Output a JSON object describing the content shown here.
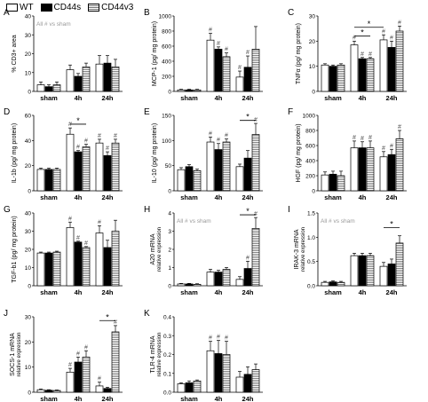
{
  "legend": {
    "wt": "WT",
    "cd44s": "CD44s",
    "cd44v3": "CD44v3"
  },
  "categories": [
    "sham",
    "4h",
    "24h"
  ],
  "colors": {
    "wt": "#ffffff",
    "cd44s": "#000000",
    "cd44v3": "#ffffff",
    "stroke": "#000000",
    "note": "#999999"
  },
  "chart_data": [
    {
      "type": "bar",
      "panel": "A",
      "ylabel": "% CD3+ area",
      "ylim": [
        0,
        40
      ],
      "yticks": [
        0,
        10,
        20,
        30,
        40
      ],
      "note": "All # vs sham",
      "categories": [
        "sham",
        "4h",
        "24h"
      ],
      "series": [
        {
          "name": "WT",
          "values": [
            3.5,
            11.5,
            14.5
          ],
          "errors": [
            1.5,
            2.5,
            4.5
          ]
        },
        {
          "name": "CD44s",
          "values": [
            2.5,
            8.0,
            15.0
          ],
          "errors": [
            1.0,
            1.5,
            4.0
          ]
        },
        {
          "name": "CD44v3",
          "values": [
            3.5,
            13.0,
            13.0
          ],
          "errors": [
            1.5,
            2.0,
            4.0
          ]
        }
      ],
      "annotations": []
    },
    {
      "type": "bar",
      "panel": "B",
      "ylabel": "MCP-1 (pg/ mg protein)",
      "ylim": [
        0,
        1000
      ],
      "yticks": [
        0,
        200,
        400,
        600,
        800,
        1000
      ],
      "note": "",
      "categories": [
        "sham",
        "4h",
        "24h"
      ],
      "series": [
        {
          "name": "WT",
          "values": [
            20,
            680,
            190
          ],
          "errors": [
            8,
            90,
            80
          ]
        },
        {
          "name": "CD44s",
          "values": [
            20,
            560,
            320
          ],
          "errors": [
            8,
            30,
            150
          ]
        },
        {
          "name": "CD44v3",
          "values": [
            20,
            460,
            560
          ],
          "errors": [
            8,
            50,
            300
          ]
        }
      ],
      "annotations": [
        {
          "type": "hash",
          "group": 1,
          "series": 0
        },
        {
          "type": "hash",
          "group": 1,
          "series": 1
        },
        {
          "type": "hash",
          "group": 1,
          "series": 2
        },
        {
          "type": "hash",
          "group": 2,
          "series": 0
        },
        {
          "type": "hash",
          "group": 2,
          "series": 1
        }
      ]
    },
    {
      "type": "bar",
      "panel": "C",
      "ylabel": "TNFα (pg/ mg protein)",
      "ylim": [
        0,
        30
      ],
      "yticks": [
        0,
        10,
        20,
        30
      ],
      "note": "",
      "categories": [
        "sham",
        "4h",
        "24h"
      ],
      "series": [
        {
          "name": "WT",
          "values": [
            10.5,
            18.5,
            20.5
          ],
          "errors": [
            0.5,
            1.5,
            2.0
          ]
        },
        {
          "name": "CD44s",
          "values": [
            10.0,
            13.0,
            17.5
          ],
          "errors": [
            0.5,
            0.5,
            2.5
          ]
        },
        {
          "name": "CD44v3",
          "values": [
            10.5,
            13.0,
            24.0
          ],
          "errors": [
            0.5,
            0.5,
            2.0
          ]
        }
      ],
      "annotations": [
        {
          "type": "hash",
          "group": 1,
          "series": 0
        },
        {
          "type": "hash",
          "group": 1,
          "series": 1
        },
        {
          "type": "hash",
          "group": 1,
          "series": 2
        },
        {
          "type": "hash",
          "group": 2,
          "series": 0
        },
        {
          "type": "hash",
          "group": 2,
          "series": 1
        },
        {
          "type": "hash",
          "group": 2,
          "series": 2
        },
        {
          "type": "star",
          "from": [
            1,
            0
          ],
          "to": [
            2,
            0
          ],
          "level": 25.5
        },
        {
          "type": "star",
          "from": [
            1,
            0
          ],
          "to": [
            1,
            2
          ],
          "level": 22.0
        }
      ]
    },
    {
      "type": "bar",
      "panel": "D",
      "ylabel": "IL-1b (pg/ mg protein)",
      "ylim": [
        0,
        60
      ],
      "yticks": [
        0,
        20,
        40,
        60
      ],
      "note": "",
      "categories": [
        "sham",
        "4h",
        "24h"
      ],
      "series": [
        {
          "name": "WT",
          "values": [
            17,
            45,
            38
          ],
          "errors": [
            1,
            5,
            3
          ]
        },
        {
          "name": "CD44s",
          "values": [
            17,
            31,
            28
          ],
          "errors": [
            1,
            1,
            3
          ]
        },
        {
          "name": "CD44v3",
          "values": [
            17,
            35,
            38
          ],
          "errors": [
            1,
            2,
            3
          ]
        }
      ],
      "annotations": [
        {
          "type": "hash",
          "group": 1,
          "series": 0
        },
        {
          "type": "hash",
          "group": 1,
          "series": 1
        },
        {
          "type": "hash",
          "group": 1,
          "series": 2
        },
        {
          "type": "hash",
          "group": 2,
          "series": 0
        },
        {
          "type": "hash",
          "group": 2,
          "series": 1
        },
        {
          "type": "hash",
          "group": 2,
          "series": 2
        },
        {
          "type": "star",
          "from": [
            1,
            0
          ],
          "to": [
            1,
            2
          ],
          "level": 53
        }
      ]
    },
    {
      "type": "bar",
      "panel": "E",
      "ylabel": "IL-10 (pg/ mg protein)",
      "ylim": [
        0,
        150
      ],
      "yticks": [
        0,
        50,
        100,
        150
      ],
      "note": "",
      "categories": [
        "sham",
        "4h",
        "24h"
      ],
      "series": [
        {
          "name": "WT",
          "values": [
            42,
            97,
            48
          ],
          "errors": [
            4,
            10,
            5
          ]
        },
        {
          "name": "CD44s",
          "values": [
            48,
            82,
            65
          ],
          "errors": [
            4,
            12,
            15
          ]
        },
        {
          "name": "CD44v3",
          "values": [
            40,
            97,
            112
          ],
          "errors": [
            3,
            6,
            22
          ]
        }
      ],
      "annotations": [
        {
          "type": "hash",
          "group": 1,
          "series": 0
        },
        {
          "type": "hash",
          "group": 1,
          "series": 1
        },
        {
          "type": "hash",
          "group": 1,
          "series": 2
        },
        {
          "type": "hash",
          "group": 2,
          "series": 2
        },
        {
          "type": "star",
          "from": [
            2,
            0
          ],
          "to": [
            2,
            2
          ],
          "level": 140
        }
      ]
    },
    {
      "type": "bar",
      "panel": "F",
      "ylabel": "HGF (pg/ mg protein)",
      "ylim": [
        0,
        1000
      ],
      "yticks": [
        0,
        200,
        400,
        600,
        800,
        1000
      ],
      "note": "",
      "categories": [
        "sham",
        "4h",
        "24h"
      ],
      "series": [
        {
          "name": "WT",
          "values": [
            210,
            570,
            450
          ],
          "errors": [
            40,
            90,
            70
          ]
        },
        {
          "name": "CD44s",
          "values": [
            220,
            570,
            480
          ],
          "errors": [
            40,
            80,
            70
          ]
        },
        {
          "name": "CD44v3",
          "values": [
            200,
            570,
            690
          ],
          "errors": [
            60,
            90,
            110
          ]
        }
      ],
      "annotations": [
        {
          "type": "hash",
          "group": 1,
          "series": 0
        },
        {
          "type": "hash",
          "group": 1,
          "series": 1
        },
        {
          "type": "hash",
          "group": 1,
          "series": 2
        },
        {
          "type": "hash",
          "group": 2,
          "series": 0
        },
        {
          "type": "hash",
          "group": 2,
          "series": 1
        },
        {
          "type": "hash",
          "group": 2,
          "series": 2
        }
      ]
    },
    {
      "type": "bar",
      "panel": "G",
      "ylabel": "TGF-b1 (pg/ mg protein)",
      "ylim": [
        0,
        40
      ],
      "yticks": [
        0,
        10,
        20,
        30,
        40
      ],
      "note": "",
      "categories": [
        "sham",
        "4h",
        "24h"
      ],
      "series": [
        {
          "name": "WT",
          "values": [
            18,
            32,
            29
          ],
          "errors": [
            0.5,
            3,
            4
          ]
        },
        {
          "name": "CD44s",
          "values": [
            18,
            24,
            21
          ],
          "errors": [
            0.5,
            0.5,
            4
          ]
        },
        {
          "name": "CD44v3",
          "values": [
            18.5,
            21,
            30
          ],
          "errors": [
            0.5,
            0.5,
            6
          ]
        }
      ],
      "annotations": [
        {
          "type": "hash",
          "group": 1,
          "series": 0
        },
        {
          "type": "hash",
          "group": 1,
          "series": 1
        },
        {
          "type": "hash",
          "group": 1,
          "series": 2
        },
        {
          "type": "hash",
          "group": 2,
          "series": 0
        }
      ]
    },
    {
      "type": "bar",
      "panel": "H",
      "ylabel": "A20 mRNA",
      "ylabel2": "relative expression",
      "ylim": [
        0,
        4
      ],
      "yticks": [
        0,
        1,
        2,
        3,
        4
      ],
      "note": "All # vs sham",
      "categories": [
        "sham",
        "4h",
        "24h"
      ],
      "series": [
        {
          "name": "WT",
          "values": [
            0.1,
            0.75,
            0.35
          ],
          "errors": [
            0.03,
            0.15,
            0.15
          ]
        },
        {
          "name": "CD44s",
          "values": [
            0.1,
            0.75,
            0.95
          ],
          "errors": [
            0.03,
            0.1,
            0.4
          ]
        },
        {
          "name": "CD44v3",
          "values": [
            0.08,
            0.9,
            3.15
          ],
          "errors": [
            0.03,
            0.1,
            0.6
          ]
        }
      ],
      "annotations": [
        {
          "type": "hash",
          "group": 2,
          "series": 1
        },
        {
          "type": "hash",
          "group": 2,
          "series": 2
        },
        {
          "type": "star",
          "from": [
            2,
            0
          ],
          "to": [
            2,
            2
          ],
          "level": 3.9
        }
      ]
    },
    {
      "type": "bar",
      "panel": "I",
      "ylabel": "IRAK-3 mRNA",
      "ylabel2": "relative expression",
      "ylim": [
        0,
        1.5
      ],
      "yticks": [
        0.0,
        0.5,
        1.0,
        1.5
      ],
      "note": "All # vs sham",
      "categories": [
        "sham",
        "4h",
        "24h"
      ],
      "series": [
        {
          "name": "WT",
          "values": [
            0.07,
            0.62,
            0.4
          ],
          "errors": [
            0.02,
            0.05,
            0.08
          ]
        },
        {
          "name": "CD44s",
          "values": [
            0.08,
            0.62,
            0.45
          ],
          "errors": [
            0.02,
            0.05,
            0.1
          ]
        },
        {
          "name": "CD44v3",
          "values": [
            0.07,
            0.62,
            0.88
          ],
          "errors": [
            0.02,
            0.05,
            0.15
          ]
        }
      ],
      "annotations": [
        {
          "type": "star",
          "from": [
            2,
            0
          ],
          "to": [
            2,
            2
          ],
          "level": 1.2
        }
      ]
    },
    {
      "type": "bar",
      "panel": "J",
      "ylabel": "SOCS-1 mRNA",
      "ylabel2": "relative expression",
      "ylim": [
        0,
        30
      ],
      "yticks": [
        0,
        10,
        20,
        30
      ],
      "note": "",
      "categories": [
        "sham",
        "4h",
        "24h"
      ],
      "series": [
        {
          "name": "WT",
          "values": [
            1,
            8,
            2.5
          ],
          "errors": [
            0.3,
            1.5,
            1.5
          ]
        },
        {
          "name": "CD44s",
          "values": [
            0.8,
            12,
            1.5
          ],
          "errors": [
            0.2,
            2,
            0.5
          ]
        },
        {
          "name": "CD44v3",
          "values": [
            0.7,
            14,
            24
          ]
        },
        {
          "name": "_err",
          "values": [
            0,
            0,
            0
          ],
          "errors": [
            0.2,
            2.5,
            2.5
          ]
        }
      ],
      "annotations": [
        {
          "type": "hash",
          "group": 1,
          "series": 0
        },
        {
          "type": "hash",
          "group": 1,
          "series": 1
        },
        {
          "type": "hash",
          "group": 1,
          "series": 2
        },
        {
          "type": "hash",
          "group": 2,
          "series": 0
        },
        {
          "type": "hash",
          "group": 2,
          "series": 2
        },
        {
          "type": "star",
          "from": [
            2,
            0
          ],
          "to": [
            2,
            2
          ],
          "level": 28.5
        }
      ]
    },
    {
      "type": "bar",
      "panel": "K",
      "ylabel": "TLR-4 mRNA",
      "ylabel2": "relative expression",
      "ylim": [
        0,
        0.4
      ],
      "yticks": [
        0.0,
        0.1,
        0.2,
        0.3,
        0.4
      ],
      "note": "",
      "categories": [
        "sham",
        "4h",
        "24h"
      ],
      "series": [
        {
          "name": "WT",
          "values": [
            0.045,
            0.22,
            0.08
          ],
          "errors": [
            0.005,
            0.05,
            0.03
          ]
        },
        {
          "name": "CD44s",
          "values": [
            0.05,
            0.205,
            0.095
          ],
          "errors": [
            0.01,
            0.07,
            0.04
          ]
        },
        {
          "name": "CD44v3",
          "values": [
            0.06,
            0.2,
            0.12
          ],
          "errors": [
            0.005,
            0.07,
            0.03
          ]
        }
      ],
      "annotations": [
        {
          "type": "hash",
          "group": 1,
          "series": 0
        },
        {
          "type": "hash",
          "group": 1,
          "series": 1
        },
        {
          "type": "hash",
          "group": 1,
          "series": 2
        }
      ]
    }
  ]
}
